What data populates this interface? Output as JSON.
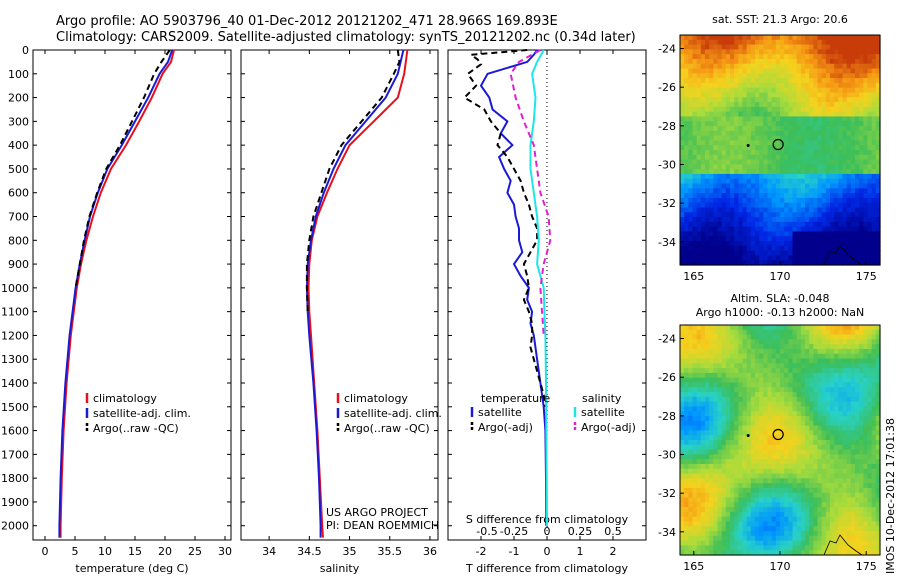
{
  "header": {
    "line1": "Argo profile: AO 5903796_40 01-Dec-2012 20121202_471 28.966S 169.893E",
    "line2": "Climatology: CARS2009. Satellite-adjusted climatology: synTS_20121202.nc (0.34d later)"
  },
  "credit": {
    "line1": "US ARGO PROJECT",
    "line2": "PI: DEAN ROEMMICH"
  },
  "stamp": "IMOS 10-Dec-2012 17:01:38",
  "colors": {
    "climatology": "#e8111b",
    "satellite": "#1a1ad6",
    "argo": "#000000",
    "salinity_sat": "#1ee6e6",
    "salinity_argo": "#e020d0"
  },
  "chart_data": [
    {
      "type": "line",
      "xlabel": "temperature (deg C)",
      "ylabel": "",
      "xlim": [
        -2,
        31
      ],
      "ylim": [
        2060,
        0
      ],
      "xticks": [
        0,
        5,
        10,
        15,
        20,
        25,
        30
      ],
      "yticks": [
        0,
        100,
        200,
        300,
        400,
        500,
        600,
        700,
        800,
        900,
        1000,
        1100,
        1200,
        1300,
        1400,
        1500,
        1600,
        1700,
        1800,
        1900,
        2000
      ],
      "legend": [
        "climatology",
        "satellite-adj. clim.",
        "Argo(..raw -QC)"
      ],
      "series": [
        {
          "name": "climatology",
          "color": "#e8111b",
          "dash": false,
          "depth": [
            0,
            50,
            100,
            200,
            300,
            400,
            500,
            600,
            700,
            800,
            900,
            1000,
            1200,
            1400,
            1600,
            1800,
            2000,
            2050
          ],
          "values": [
            21.5,
            21.0,
            19.6,
            17.8,
            15.7,
            13.5,
            11.0,
            9.3,
            8.0,
            6.9,
            6.0,
            5.3,
            4.3,
            3.6,
            3.1,
            2.8,
            2.6,
            2.6
          ]
        },
        {
          "name": "satellite-adj. clim.",
          "color": "#1a1ad6",
          "dash": false,
          "depth": [
            0,
            50,
            100,
            200,
            300,
            400,
            500,
            600,
            700,
            800,
            900,
            1000,
            1200,
            1400,
            1600,
            1800,
            2000,
            2050
          ],
          "values": [
            21.2,
            20.5,
            19.1,
            17.2,
            15.0,
            12.8,
            10.4,
            8.8,
            7.5,
            6.6,
            5.8,
            5.1,
            4.1,
            3.4,
            2.9,
            2.6,
            2.4,
            2.4
          ]
        },
        {
          "name": "Argo(..raw -QC)",
          "color": "#000000",
          "dash": true,
          "depth": [
            0,
            50,
            100,
            200,
            300,
            400,
            500,
            600,
            700,
            800,
            900,
            1000
          ],
          "values": [
            20.8,
            19.4,
            18.2,
            16.5,
            14.5,
            12.5,
            10.2,
            8.7,
            7.4,
            6.5,
            5.8,
            5.1
          ]
        }
      ]
    },
    {
      "type": "line",
      "xlabel": "salinity",
      "ylabel": "",
      "xlim": [
        33.65,
        36.1
      ],
      "ylim": [
        2060,
        0
      ],
      "xticks": [
        34,
        34.5,
        35,
        35.5,
        36
      ],
      "legend": [
        "climatology",
        "satellite-adj. clim.",
        "Argo(..raw -QC)"
      ],
      "series": [
        {
          "name": "climatology",
          "color": "#e8111b",
          "dash": false,
          "depth": [
            0,
            100,
            200,
            300,
            400,
            500,
            600,
            700,
            800,
            900,
            1000,
            1100,
            1200,
            1400,
            1600,
            1800,
            2000,
            2050
          ],
          "values": [
            35.72,
            35.68,
            35.6,
            35.3,
            35.0,
            34.85,
            34.72,
            34.6,
            34.53,
            34.5,
            34.49,
            34.5,
            34.52,
            34.56,
            34.6,
            34.63,
            34.66,
            34.67
          ]
        },
        {
          "name": "satellite-adj. clim.",
          "color": "#1a1ad6",
          "dash": false,
          "depth": [
            0,
            100,
            200,
            300,
            400,
            500,
            600,
            700,
            800,
            900,
            1000,
            1100,
            1200,
            1400,
            1600,
            1800,
            2000,
            2050
          ],
          "values": [
            35.67,
            35.6,
            35.45,
            35.2,
            34.95,
            34.8,
            34.68,
            34.58,
            34.52,
            34.48,
            34.47,
            34.48,
            34.5,
            34.55,
            34.59,
            34.62,
            34.64,
            34.64
          ]
        },
        {
          "name": "Argo(..raw -QC)",
          "color": "#000000",
          "dash": true,
          "depth": [
            0,
            50,
            100,
            200,
            300,
            400,
            500,
            600,
            700,
            800,
            900,
            1000,
            1100
          ],
          "values": [
            35.6,
            35.62,
            35.55,
            35.4,
            35.15,
            34.9,
            34.75,
            34.65,
            34.55,
            34.5,
            34.47,
            34.47,
            34.48
          ]
        }
      ]
    },
    {
      "type": "line",
      "xlabel": "T difference from climatology",
      "xlabel_top": "S difference from climatology",
      "ylabel": "",
      "xlim": [
        -3,
        3
      ],
      "ylim": [
        2060,
        0
      ],
      "xticks_bottom": [
        -2,
        -1,
        0,
        1,
        2
      ],
      "xticks_top": [
        -0.5,
        -0.25,
        0,
        0.25,
        0.5
      ],
      "legend_title_left": "temperature",
      "legend_title_right": "salinity",
      "legend": [
        "satellite",
        "Argo(-adj)",
        "satellite",
        "Argo(-adj)"
      ],
      "series": [
        {
          "name": "satellite",
          "group": "temperature",
          "color": "#1a1ad6",
          "dash": false,
          "depth": [
            0,
            20,
            50,
            100,
            150,
            200,
            250,
            300,
            350,
            400,
            450,
            500,
            550,
            600,
            650,
            700,
            750,
            800,
            850,
            900,
            950,
            1000,
            1050,
            1100,
            1150,
            1200,
            1300,
            1400,
            1500,
            1600,
            1800,
            2000
          ],
          "values": [
            -0.3,
            -0.4,
            -0.6,
            -1.8,
            -2.0,
            -1.75,
            -1.65,
            -1.2,
            -1.4,
            -1.05,
            -1.45,
            -1.3,
            -1.1,
            -1.2,
            -1.0,
            -0.95,
            -0.85,
            -0.85,
            -0.75,
            -1.0,
            -0.8,
            -0.55,
            -0.6,
            -0.45,
            -0.5,
            -0.4,
            -0.3,
            -0.2,
            -0.1,
            -0.05,
            -0.03,
            -0.02
          ]
        },
        {
          "name": "Argo(-adj)",
          "group": "temperature",
          "color": "#000000",
          "dash": true,
          "depth": [
            0,
            20,
            40,
            60,
            100,
            150,
            200,
            250,
            300,
            350,
            400,
            450,
            500,
            550,
            600,
            650,
            700,
            750,
            800,
            850,
            900,
            950,
            1000,
            1050,
            1100,
            1150,
            1200,
            1250,
            1300,
            1350,
            1400,
            1450,
            1500
          ],
          "values": [
            -0.6,
            -2.3,
            -2.1,
            -2.0,
            -2.4,
            -2.15,
            -2.5,
            -1.9,
            -1.7,
            -1.4,
            -1.5,
            -1.2,
            -1.0,
            -0.8,
            -0.7,
            -0.55,
            -0.45,
            -0.3,
            -0.3,
            -0.5,
            -0.7,
            -0.6,
            -0.55,
            -0.7,
            -0.55,
            -0.45,
            -0.45,
            -0.5,
            -0.4,
            -0.3,
            -0.2,
            -0.1,
            -0.05
          ]
        },
        {
          "name": "satellite",
          "group": "salinity",
          "color": "#1ee6e6",
          "dash": false,
          "depth": [
            0,
            50,
            100,
            200,
            300,
            400,
            500,
            600,
            700,
            800,
            900,
            1000,
            1100,
            1200,
            1400,
            1600,
            1800,
            2000
          ],
          "values": [
            -0.1,
            -0.3,
            -0.45,
            -0.35,
            -0.4,
            -0.5,
            -0.5,
            -0.4,
            -0.3,
            -0.25,
            -0.3,
            -0.1,
            -0.08,
            -0.05,
            -0.03,
            -0.02,
            -0.01,
            0
          ]
        },
        {
          "name": "Argo(-adj)",
          "group": "salinity",
          "color": "#e020d0",
          "dash": true,
          "depth": [
            0,
            50,
            100,
            200,
            300,
            400,
            500,
            600,
            700,
            800,
            900,
            1000,
            1100,
            1200
          ],
          "values": [
            -0.2,
            -0.85,
            -1.1,
            -0.95,
            -0.7,
            -0.4,
            -0.3,
            -0.2,
            0.05,
            0.1,
            -0.1,
            -0.2,
            -0.15,
            -0.1
          ]
        }
      ]
    },
    {
      "type": "heatmap",
      "title": "sat. SST: 21.3 Argo: 20.6",
      "xlim": [
        164.2,
        175.8
      ],
      "ylim": [
        -35.2,
        -23.3
      ],
      "xticks": [
        165,
        170,
        175
      ],
      "yticks": [
        -24,
        -26,
        -28,
        -30,
        -32,
        -34
      ],
      "marker": {
        "lon": 169.893,
        "lat": -28.966
      }
    },
    {
      "type": "heatmap",
      "title_line1": "Altim. SLA: -0.048",
      "title_line2": "Argo h1000: -0.13 h2000: NaN",
      "xlim": [
        164.2,
        175.8
      ],
      "ylim": [
        -35.2,
        -23.3
      ],
      "xticks": [
        165,
        170,
        175
      ],
      "yticks": [
        -24,
        -26,
        -28,
        -30,
        -32,
        -34
      ],
      "marker": {
        "lon": 169.893,
        "lat": -28.966
      }
    }
  ]
}
